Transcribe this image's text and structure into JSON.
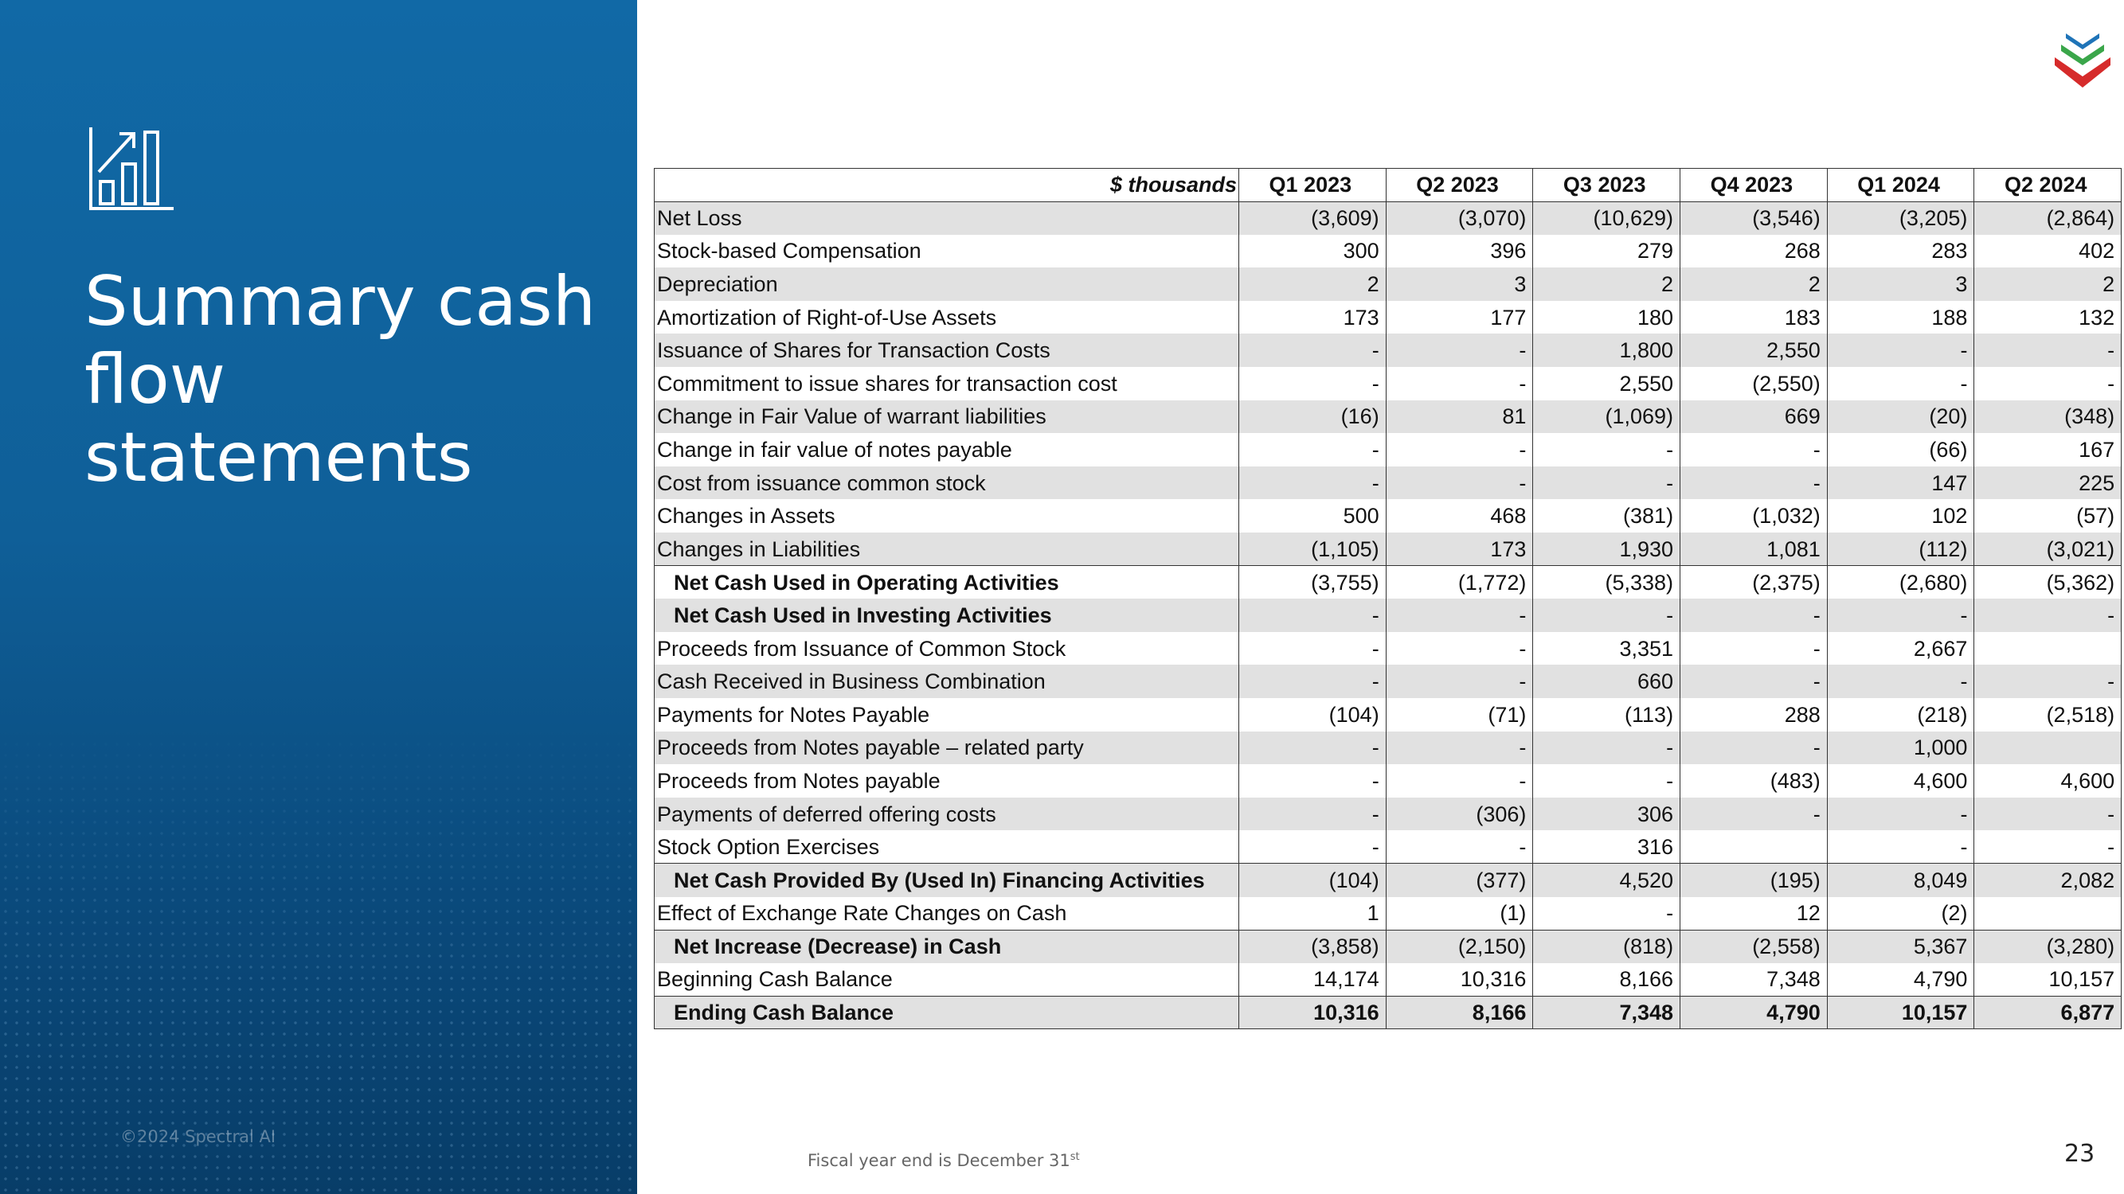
{
  "slide": {
    "title": "Summary cash flow statements",
    "copyright": "©2024 Spectral AI",
    "footnote": "Fiscal year end is December 31",
    "footnote_sup": "st",
    "page_number": "23"
  },
  "table": {
    "unit_label": "$ thousands",
    "columns": [
      "Q1 2023",
      "Q2 2023",
      "Q3 2023",
      "Q4 2023",
      "Q1 2024",
      "Q2 2024"
    ],
    "rows": [
      {
        "label": "Net Loss",
        "values": [
          "(3,609)",
          "(3,070)",
          "(10,629)",
          "(3,546)",
          "(3,205)",
          "(2,864)"
        ]
      },
      {
        "label": "Stock-based Compensation",
        "values": [
          "300",
          "396",
          "279",
          "268",
          "283",
          "402"
        ]
      },
      {
        "label": "Depreciation",
        "values": [
          "2",
          "3",
          "2",
          "2",
          "3",
          "2"
        ]
      },
      {
        "label": "Amortization of Right-of-Use Assets",
        "values": [
          "173",
          "177",
          "180",
          "183",
          "188",
          "132"
        ]
      },
      {
        "label": "Issuance of Shares for Transaction Costs",
        "values": [
          "-",
          "-",
          "1,800",
          "2,550",
          "-",
          "-"
        ]
      },
      {
        "label": "Commitment to issue shares for transaction cost",
        "values": [
          "-",
          "-",
          "2,550",
          "(2,550)",
          "-",
          "-"
        ]
      },
      {
        "label": "Change in Fair Value of warrant liabilities",
        "values": [
          "(16)",
          "81",
          "(1,069)",
          "669",
          "(20)",
          "(348)"
        ]
      },
      {
        "label": "Change in fair value of notes payable",
        "values": [
          "-",
          "-",
          "-",
          "-",
          "(66)",
          "167"
        ]
      },
      {
        "label": "Cost from issuance common stock",
        "values": [
          "-",
          "-",
          "-",
          "-",
          "147",
          "225"
        ]
      },
      {
        "label": "Changes in Assets",
        "values": [
          "500",
          "468",
          "(381)",
          "(1,032)",
          "102",
          "(57)"
        ]
      },
      {
        "label": "Changes in Liabilities",
        "values": [
          "(1,105)",
          "173",
          "1,930",
          "1,081",
          "(112)",
          "(3,021)"
        ]
      },
      {
        "label": "Net Cash Used in Operating Activities",
        "bold": true,
        "rule_above": true,
        "values": [
          "(3,755)",
          "(1,772)",
          "(5,338)",
          "(2,375)",
          "(2,680)",
          "(5,362)"
        ]
      },
      {
        "label": "Net Cash Used in Investing Activities",
        "bold": true,
        "values": [
          "-",
          "-",
          "-",
          "-",
          "-",
          "-"
        ]
      },
      {
        "label": "Proceeds from Issuance of Common Stock",
        "values": [
          "-",
          "-",
          "3,351",
          "-",
          "2,667",
          null
        ]
      },
      {
        "label": "Cash Received in Business Combination",
        "values": [
          "-",
          "-",
          "660",
          "-",
          "-",
          "-"
        ]
      },
      {
        "label": "Payments for Notes Payable",
        "values": [
          "(104)",
          "(71)",
          "(113)",
          "288",
          "(218)",
          "(2,518)"
        ]
      },
      {
        "label": "Proceeds from Notes payable – related party",
        "values": [
          "-",
          "-",
          "-",
          "-",
          "1,000",
          null
        ]
      },
      {
        "label": "Proceeds from Notes payable",
        "values": [
          "-",
          "-",
          "-",
          "(483)",
          "4,600",
          "4,600"
        ]
      },
      {
        "label": "Payments of deferred offering costs",
        "values": [
          "-",
          "(306)",
          "306",
          "-",
          "-",
          "-"
        ]
      },
      {
        "label": "Stock Option Exercises",
        "values": [
          "-",
          "-",
          "316",
          null,
          "-",
          "-"
        ]
      },
      {
        "label": "Net Cash Provided By (Used In) Financing Activities",
        "bold": true,
        "rule_above": true,
        "values": [
          "(104)",
          "(377)",
          "4,520",
          "(195)",
          "8,049",
          "2,082"
        ]
      },
      {
        "label": "Effect of Exchange Rate Changes on Cash",
        "values": [
          "1",
          "(1)",
          "-",
          "12",
          "(2)",
          null
        ]
      },
      {
        "label": "Net Increase (Decrease) in Cash",
        "bold": true,
        "rule_above": true,
        "values": [
          "(3,858)",
          "(2,150)",
          "(818)",
          "(2,558)",
          "5,367",
          "(3,280)"
        ]
      },
      {
        "label": "Beginning Cash Balance",
        "values": [
          "14,174",
          "10,316",
          "8,166",
          "7,348",
          "4,790",
          "10,157"
        ]
      },
      {
        "label": "Ending Cash Balance",
        "bold": true,
        "bold_values": true,
        "rule_above": true,
        "values": [
          "10,316",
          "8,166",
          "7,348",
          "4,790",
          "10,157",
          "6,877"
        ]
      }
    ]
  }
}
